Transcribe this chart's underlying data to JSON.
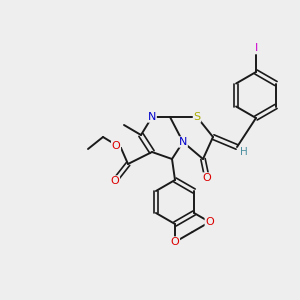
{
  "background_color": "#eeeeee",
  "bond_color": "#1a1a1a",
  "atom_colors": {
    "O": "#dd0000",
    "N": "#0000cc",
    "S": "#aaaa00",
    "I": "#cc00cc",
    "H": "#4a8fa0",
    "C": "#1a1a1a"
  },
  "fig_size": [
    3.0,
    3.0
  ],
  "dpi": 100
}
